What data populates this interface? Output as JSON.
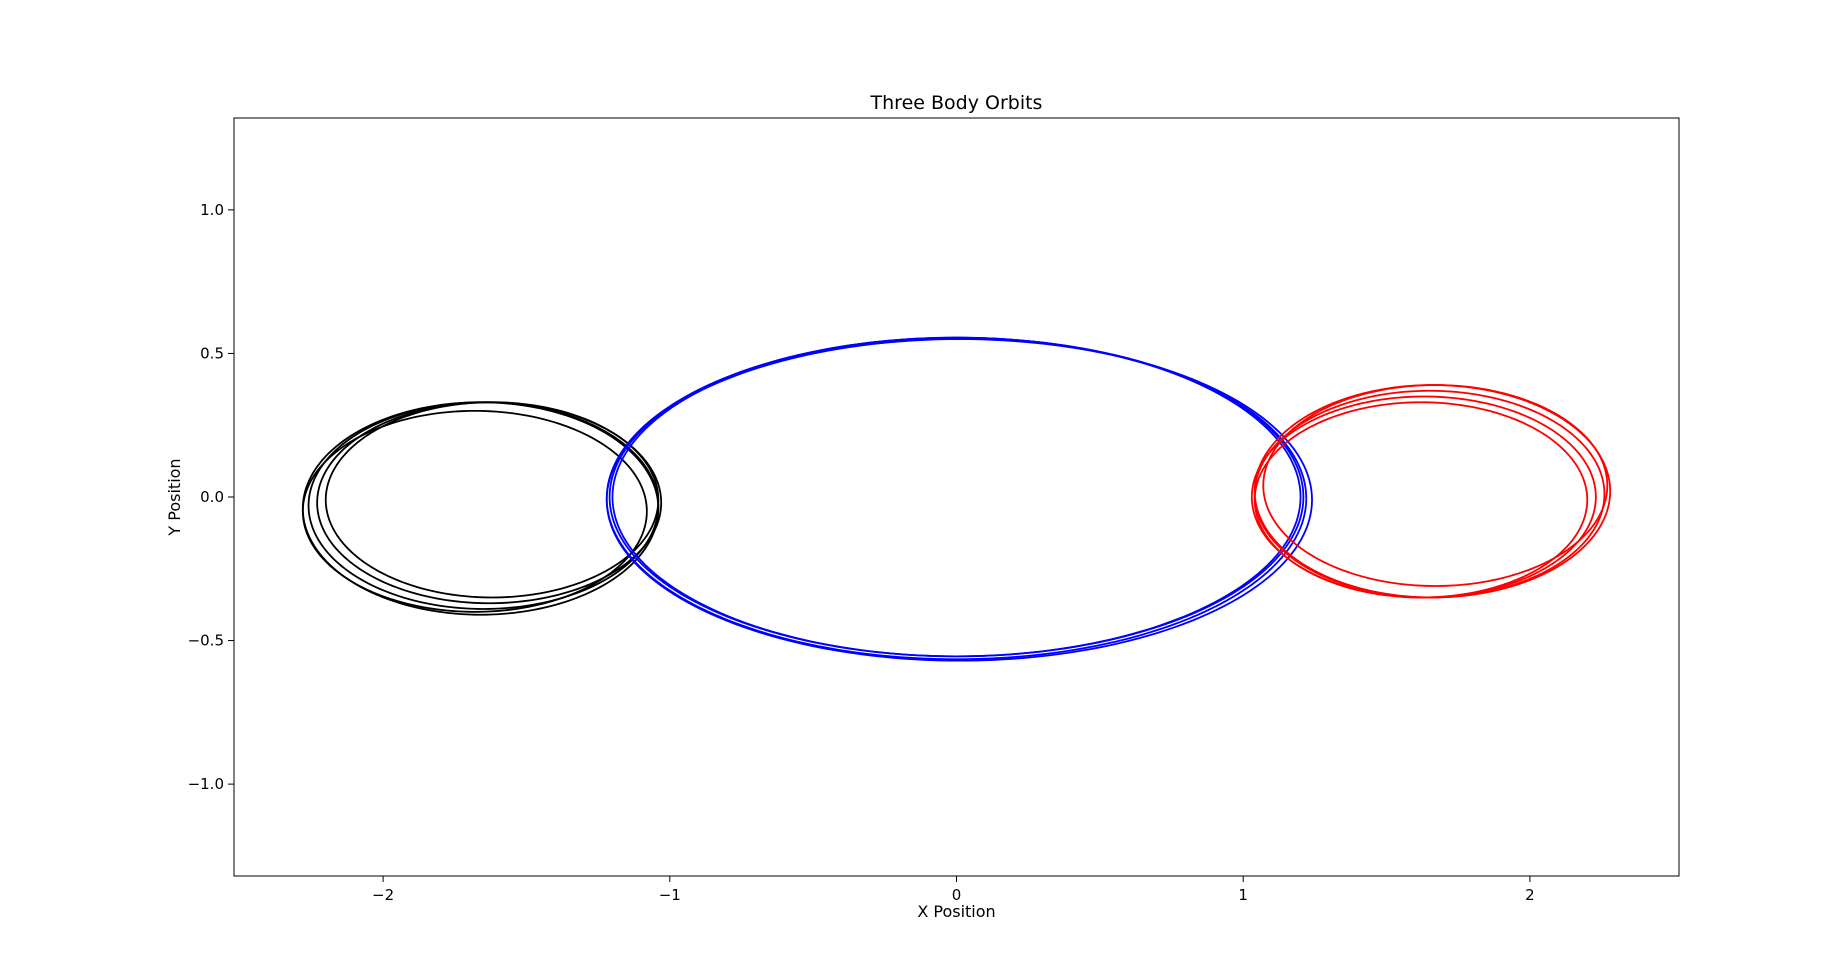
{
  "chart_data": {
    "type": "line",
    "title": "Three Body Orbits",
    "xlabel": "X Position",
    "ylabel": "Y Position",
    "xlim": [
      -2.52,
      2.52
    ],
    "ylim": [
      -1.32,
      1.32
    ],
    "xticks": [
      {
        "value": -2,
        "label": "−2"
      },
      {
        "value": -1,
        "label": "−1"
      },
      {
        "value": 0,
        "label": "0"
      },
      {
        "value": 1,
        "label": "1"
      },
      {
        "value": 2,
        "label": "2"
      }
    ],
    "yticks": [
      {
        "value": -1.0,
        "label": "−1.0"
      },
      {
        "value": -0.5,
        "label": "−0.5"
      },
      {
        "value": 0.0,
        "label": "0.0"
      },
      {
        "value": 0.5,
        "label": "0.5"
      },
      {
        "value": 1.0,
        "label": "1.0"
      }
    ],
    "grid": false,
    "series": [
      {
        "color": "#000000",
        "loops": [
          {
            "cx": -1.62,
            "cy": -0.01,
            "rx": 0.58,
            "ry": 0.34
          },
          {
            "cx": -1.63,
            "cy": -0.02,
            "rx": 0.6,
            "ry": 0.35
          },
          {
            "cx": -1.65,
            "cy": -0.03,
            "rx": 0.61,
            "ry": 0.36
          },
          {
            "cx": -1.66,
            "cy": -0.04,
            "rx": 0.62,
            "ry": 0.37
          },
          {
            "cx": -1.68,
            "cy": -0.05,
            "rx": 0.6,
            "ry": 0.35
          }
        ]
      },
      {
        "color": "#0000ff",
        "loops": [
          {
            "cx": 0.0,
            "cy": 0.0,
            "rx": 1.2,
            "ry": 0.555
          },
          {
            "cx": 0.0,
            "cy": 0.0,
            "rx": 1.21,
            "ry": 0.555
          },
          {
            "cx": 0.0,
            "cy": -0.005,
            "rx": 1.22,
            "ry": 0.56
          },
          {
            "cx": 0.01,
            "cy": -0.01,
            "rx": 1.23,
            "ry": 0.56
          }
        ]
      },
      {
        "color": "#ff0000",
        "loops": [
          {
            "cx": 1.62,
            "cy": -0.01,
            "rx": 0.58,
            "ry": 0.34
          },
          {
            "cx": 1.63,
            "cy": 0.0,
            "rx": 0.6,
            "ry": 0.35
          },
          {
            "cx": 1.65,
            "cy": 0.01,
            "rx": 0.61,
            "ry": 0.36
          },
          {
            "cx": 1.66,
            "cy": 0.02,
            "rx": 0.62,
            "ry": 0.37
          },
          {
            "cx": 1.67,
            "cy": 0.04,
            "rx": 0.6,
            "ry": 0.35
          }
        ]
      }
    ]
  }
}
